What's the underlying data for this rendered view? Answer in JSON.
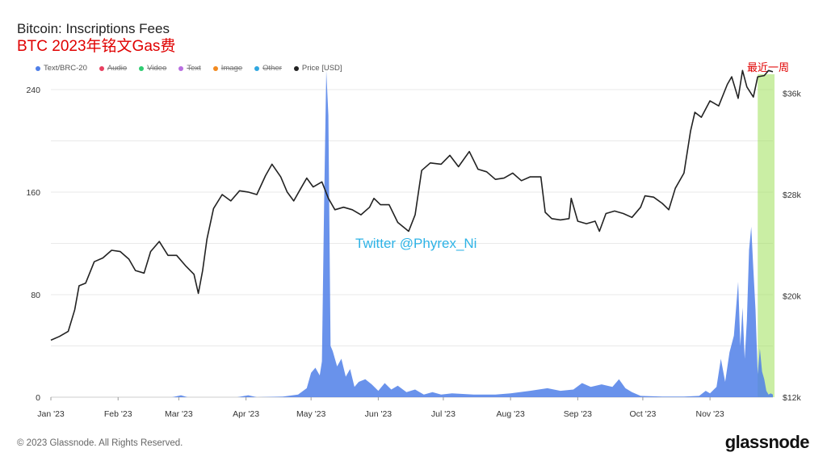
{
  "page": {
    "title": "Bitcoin: Inscriptions Fees",
    "subtitle": "BTC 2023年铭文Gas费",
    "week_label": "最近一周",
    "watermark": "Twitter @Phyrex_Ni",
    "footer": "© 2023 Glassnode. All Rights Reserved.",
    "logo": "glassnode"
  },
  "legend": [
    {
      "label": "Text/BRC-20",
      "color": "#4f7fe8",
      "active": true
    },
    {
      "label": "Audio",
      "color": "#e84060",
      "active": false
    },
    {
      "label": "Video",
      "color": "#2ecc71",
      "active": false
    },
    {
      "label": "Text",
      "color": "#b86ee0",
      "active": false
    },
    {
      "label": "Image",
      "color": "#f28a20",
      "active": false
    },
    {
      "label": "Other",
      "color": "#30a7e0",
      "active": false
    },
    {
      "label": "Price [USD]",
      "color": "#222222",
      "active": true
    }
  ],
  "chart_data": {
    "type": "area",
    "title": "Bitcoin: Inscriptions Fees",
    "x_axis": {
      "labels": [
        "Jan '23",
        "Feb '23",
        "Mar '23",
        "Apr '23",
        "May '23",
        "Jun '23",
        "Jul '23",
        "Aug '23",
        "Sep '23",
        "Oct '23",
        "Nov '23"
      ],
      "range": [
        "2023-01-01",
        "2023-11-30"
      ]
    },
    "y_left": {
      "ticks": [
        0,
        80,
        160,
        240
      ],
      "ylim": [
        0,
        252
      ]
    },
    "y_right": {
      "ticks": [
        "$12k",
        "$20k",
        "$28k",
        "$36k"
      ],
      "tick_values": [
        12000,
        20000,
        28000,
        36000
      ],
      "ylim": [
        12000,
        37500
      ]
    },
    "highlight": {
      "from": "2023-11-23",
      "to": "2023-11-30",
      "color": "#9ee05a",
      "label": "最近一周"
    },
    "series": [
      {
        "name": "Text/BRC-20",
        "axis": "left",
        "color": "#4f7fe8",
        "points": [
          [
            "2023-01-01",
            0
          ],
          [
            "2023-02-01",
            0
          ],
          [
            "2023-02-26",
            0
          ],
          [
            "2023-03-02",
            1.5
          ],
          [
            "2023-03-05",
            0
          ],
          [
            "2023-03-28",
            0
          ],
          [
            "2023-04-02",
            1.5
          ],
          [
            "2023-04-06",
            0
          ],
          [
            "2023-04-18",
            0.5
          ],
          [
            "2023-04-25",
            2
          ],
          [
            "2023-04-29",
            7
          ],
          [
            "2023-05-01",
            19
          ],
          [
            "2023-05-03",
            23
          ],
          [
            "2023-05-05",
            17
          ],
          [
            "2023-05-06",
            28
          ],
          [
            "2023-05-07",
            150
          ],
          [
            "2023-05-08",
            255
          ],
          [
            "2023-05-09",
            220
          ],
          [
            "2023-05-10",
            40
          ],
          [
            "2023-05-11",
            36
          ],
          [
            "2023-05-13",
            24
          ],
          [
            "2023-05-15",
            30
          ],
          [
            "2023-05-17",
            16
          ],
          [
            "2023-05-19",
            22
          ],
          [
            "2023-05-21",
            8
          ],
          [
            "2023-05-23",
            12
          ],
          [
            "2023-05-26",
            14
          ],
          [
            "2023-05-29",
            10
          ],
          [
            "2023-06-01",
            5
          ],
          [
            "2023-06-04",
            11
          ],
          [
            "2023-06-07",
            6
          ],
          [
            "2023-06-10",
            9
          ],
          [
            "2023-06-14",
            4
          ],
          [
            "2023-06-18",
            6
          ],
          [
            "2023-06-22",
            2
          ],
          [
            "2023-06-26",
            4
          ],
          [
            "2023-06-30",
            2
          ],
          [
            "2023-07-05",
            3
          ],
          [
            "2023-07-15",
            2
          ],
          [
            "2023-07-25",
            2
          ],
          [
            "2023-08-01",
            3
          ],
          [
            "2023-08-10",
            5
          ],
          [
            "2023-08-18",
            7
          ],
          [
            "2023-08-24",
            5
          ],
          [
            "2023-08-30",
            6
          ],
          [
            "2023-09-03",
            11
          ],
          [
            "2023-09-07",
            8
          ],
          [
            "2023-09-12",
            10
          ],
          [
            "2023-09-17",
            8
          ],
          [
            "2023-09-20",
            14
          ],
          [
            "2023-09-23",
            7
          ],
          [
            "2023-09-26",
            4
          ],
          [
            "2023-09-30",
            1
          ],
          [
            "2023-10-10",
            0.5
          ],
          [
            "2023-10-20",
            0.5
          ],
          [
            "2023-10-27",
            1
          ],
          [
            "2023-10-30",
            5
          ],
          [
            "2023-11-01",
            3
          ],
          [
            "2023-11-04",
            8
          ],
          [
            "2023-11-06",
            30
          ],
          [
            "2023-11-08",
            12
          ],
          [
            "2023-11-10",
            35
          ],
          [
            "2023-11-12",
            48
          ],
          [
            "2023-11-14",
            90
          ],
          [
            "2023-11-15",
            40
          ],
          [
            "2023-11-16",
            70
          ],
          [
            "2023-11-17",
            30
          ],
          [
            "2023-11-18",
            60
          ],
          [
            "2023-11-19",
            115
          ],
          [
            "2023-11-20",
            133
          ],
          [
            "2023-11-21",
            100
          ],
          [
            "2023-11-22",
            68
          ],
          [
            "2023-11-23",
            18
          ],
          [
            "2023-11-24",
            38
          ],
          [
            "2023-11-25",
            20
          ],
          [
            "2023-11-26",
            14
          ],
          [
            "2023-11-27",
            5
          ],
          [
            "2023-11-28",
            2
          ],
          [
            "2023-11-29",
            3
          ],
          [
            "2023-11-30",
            2
          ]
        ]
      },
      {
        "name": "Price [USD]",
        "axis": "right",
        "color": "#222222",
        "points": [
          [
            "2023-01-01",
            16500
          ],
          [
            "2023-01-05",
            16800
          ],
          [
            "2023-01-09",
            17200
          ],
          [
            "2023-01-12",
            18900
          ],
          [
            "2023-01-14",
            20800
          ],
          [
            "2023-01-17",
            21000
          ],
          [
            "2023-01-21",
            22700
          ],
          [
            "2023-01-25",
            23000
          ],
          [
            "2023-01-29",
            23600
          ],
          [
            "2023-02-02",
            23500
          ],
          [
            "2023-02-06",
            22900
          ],
          [
            "2023-02-09",
            22000
          ],
          [
            "2023-02-13",
            21800
          ],
          [
            "2023-02-16",
            23500
          ],
          [
            "2023-02-20",
            24300
          ],
          [
            "2023-02-24",
            23200
          ],
          [
            "2023-02-28",
            23200
          ],
          [
            "2023-03-04",
            22400
          ],
          [
            "2023-03-08",
            21700
          ],
          [
            "2023-03-10",
            20200
          ],
          [
            "2023-03-12",
            22000
          ],
          [
            "2023-03-14",
            24500
          ],
          [
            "2023-03-17",
            26900
          ],
          [
            "2023-03-21",
            28000
          ],
          [
            "2023-03-25",
            27500
          ],
          [
            "2023-03-29",
            28300
          ],
          [
            "2023-04-02",
            28200
          ],
          [
            "2023-04-06",
            28000
          ],
          [
            "2023-04-10",
            29500
          ],
          [
            "2023-04-13",
            30400
          ],
          [
            "2023-04-17",
            29400
          ],
          [
            "2023-04-20",
            28200
          ],
          [
            "2023-04-23",
            27500
          ],
          [
            "2023-04-26",
            28400
          ],
          [
            "2023-04-29",
            29300
          ],
          [
            "2023-05-02",
            28600
          ],
          [
            "2023-05-06",
            29000
          ],
          [
            "2023-05-09",
            27700
          ],
          [
            "2023-05-12",
            26800
          ],
          [
            "2023-05-16",
            27000
          ],
          [
            "2023-05-20",
            26800
          ],
          [
            "2023-05-24",
            26400
          ],
          [
            "2023-05-28",
            27000
          ],
          [
            "2023-05-30",
            27700
          ],
          [
            "2023-06-02",
            27200
          ],
          [
            "2023-06-06",
            27200
          ],
          [
            "2023-06-10",
            25800
          ],
          [
            "2023-06-15",
            25100
          ],
          [
            "2023-06-18",
            26400
          ],
          [
            "2023-06-21",
            29900
          ],
          [
            "2023-06-25",
            30500
          ],
          [
            "2023-06-30",
            30400
          ],
          [
            "2023-07-04",
            31100
          ],
          [
            "2023-07-08",
            30200
          ],
          [
            "2023-07-13",
            31400
          ],
          [
            "2023-07-17",
            30000
          ],
          [
            "2023-07-21",
            29800
          ],
          [
            "2023-07-25",
            29200
          ],
          [
            "2023-07-29",
            29300
          ],
          [
            "2023-08-02",
            29700
          ],
          [
            "2023-08-06",
            29100
          ],
          [
            "2023-08-10",
            29400
          ],
          [
            "2023-08-15",
            29400
          ],
          [
            "2023-08-17",
            26600
          ],
          [
            "2023-08-20",
            26100
          ],
          [
            "2023-08-24",
            26000
          ],
          [
            "2023-08-28",
            26100
          ],
          [
            "2023-08-29",
            27700
          ],
          [
            "2023-09-01",
            25900
          ],
          [
            "2023-09-05",
            25700
          ],
          [
            "2023-09-09",
            25900
          ],
          [
            "2023-09-11",
            25100
          ],
          [
            "2023-09-14",
            26500
          ],
          [
            "2023-09-18",
            26700
          ],
          [
            "2023-09-22",
            26500
          ],
          [
            "2023-09-26",
            26200
          ],
          [
            "2023-09-30",
            27000
          ],
          [
            "2023-10-02",
            27900
          ],
          [
            "2023-10-06",
            27800
          ],
          [
            "2023-10-10",
            27300
          ],
          [
            "2023-10-13",
            26800
          ],
          [
            "2023-10-16",
            28500
          ],
          [
            "2023-10-20",
            29700
          ],
          [
            "2023-10-23",
            33000
          ],
          [
            "2023-10-25",
            34500
          ],
          [
            "2023-10-28",
            34100
          ],
          [
            "2023-11-01",
            35400
          ],
          [
            "2023-11-05",
            35000
          ],
          [
            "2023-11-09",
            36700
          ],
          [
            "2023-11-11",
            37300
          ],
          [
            "2023-11-14",
            35600
          ],
          [
            "2023-11-16",
            37800
          ],
          [
            "2023-11-18",
            36500
          ],
          [
            "2023-11-21",
            35700
          ],
          [
            "2023-11-23",
            37300
          ],
          [
            "2023-11-26",
            37400
          ],
          [
            "2023-11-28",
            37800
          ],
          [
            "2023-11-30",
            37700
          ]
        ]
      }
    ]
  }
}
